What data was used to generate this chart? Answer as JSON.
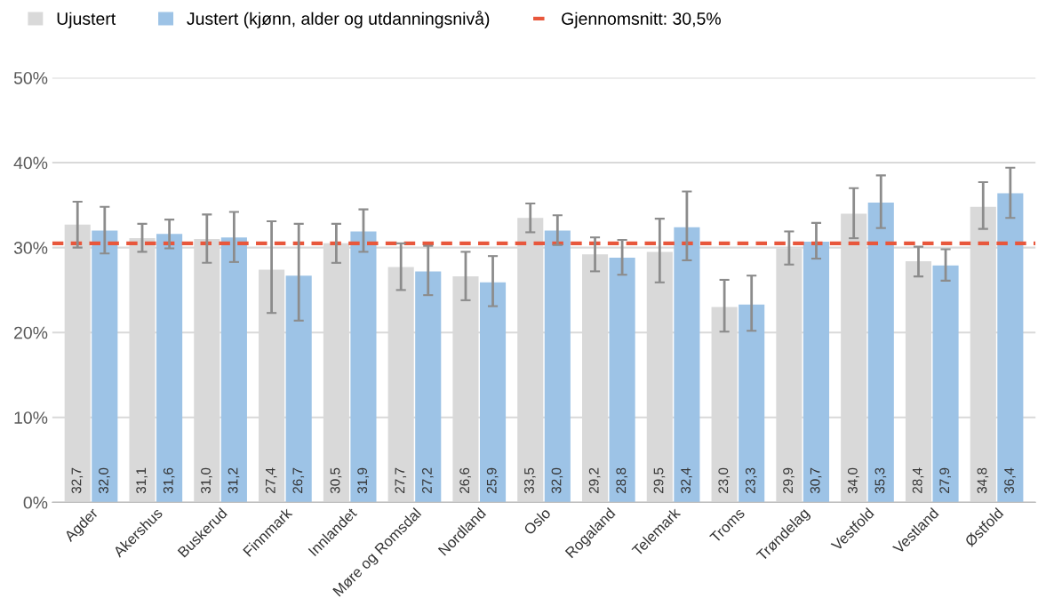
{
  "chart_data": {
    "type": "bar",
    "categories": [
      "Agder",
      "Akershus",
      "Buskerud",
      "Finnmark",
      "Innlandet",
      "Møre og Romsdal",
      "Nordland",
      "Oslo",
      "Rogaland",
      "Telemark",
      "Troms",
      "Trøndelag",
      "Vestfold",
      "Vestland",
      "Østfold"
    ],
    "series": [
      {
        "name": "Ujustert",
        "color": "#d9d9d9",
        "values": [
          32.7,
          31.1,
          31.0,
          27.4,
          30.5,
          27.7,
          26.6,
          33.5,
          29.2,
          29.5,
          23.0,
          29.9,
          34.0,
          28.4,
          34.8
        ],
        "value_labels": [
          "32,7",
          "31,1",
          "31,0",
          "27,4",
          "30,5",
          "27,7",
          "26,6",
          "33,5",
          "29,2",
          "29,5",
          "23,0",
          "29,9",
          "34,0",
          "28,4",
          "34,8"
        ],
        "errors": [
          [
            30.0,
            35.4
          ],
          [
            29.5,
            32.8
          ],
          [
            28.2,
            33.9
          ],
          [
            22.3,
            33.1
          ],
          [
            28.2,
            32.8
          ],
          [
            25.0,
            30.5
          ],
          [
            23.8,
            29.5
          ],
          [
            31.8,
            35.2
          ],
          [
            27.2,
            31.2
          ],
          [
            25.9,
            33.4
          ],
          [
            20.1,
            26.2
          ],
          [
            28.0,
            31.9
          ],
          [
            31.1,
            37.0
          ],
          [
            26.6,
            30.1
          ],
          [
            32.2,
            37.7
          ]
        ]
      },
      {
        "name": "Justert (kjønn, alder og utdanningsnivå)",
        "color": "#9dc3e6",
        "values": [
          32.0,
          31.6,
          31.2,
          26.7,
          31.9,
          27.2,
          25.9,
          32.0,
          28.8,
          32.4,
          23.3,
          30.7,
          35.3,
          27.9,
          36.4
        ],
        "value_labels": [
          "32,0",
          "31,6",
          "31,2",
          "26,7",
          "31,9",
          "27,2",
          "25,9",
          "32,0",
          "28,8",
          "32,4",
          "23,3",
          "30,7",
          "35,3",
          "27,9",
          "36,4"
        ],
        "errors": [
          [
            29.3,
            34.8
          ],
          [
            29.9,
            33.3
          ],
          [
            28.3,
            34.2
          ],
          [
            21.4,
            32.8
          ],
          [
            29.5,
            34.5
          ],
          [
            24.4,
            30.2
          ],
          [
            23.1,
            29.0
          ],
          [
            30.3,
            33.8
          ],
          [
            26.8,
            30.9
          ],
          [
            28.5,
            36.6
          ],
          [
            20.2,
            26.7
          ],
          [
            28.7,
            32.9
          ],
          [
            32.3,
            38.5
          ],
          [
            26.1,
            29.8
          ],
          [
            33.5,
            39.4
          ]
        ]
      }
    ],
    "ref_lines": [
      {
        "axis": "y",
        "value": 30.5,
        "label": "Gjennomsnitt: 30,5%",
        "color": "#e8573c",
        "line_style": "dashed"
      }
    ],
    "ylim": [
      0,
      50
    ],
    "yticks": [
      {
        "value": 0,
        "label": "0%"
      },
      {
        "value": 10,
        "label": "10%"
      },
      {
        "value": 20,
        "label": "20%"
      },
      {
        "value": 30,
        "label": "30%"
      },
      {
        "value": 40,
        "label": "40%"
      },
      {
        "value": 50,
        "label": "50%"
      }
    ],
    "grid": "y",
    "legend": "top left"
  }
}
